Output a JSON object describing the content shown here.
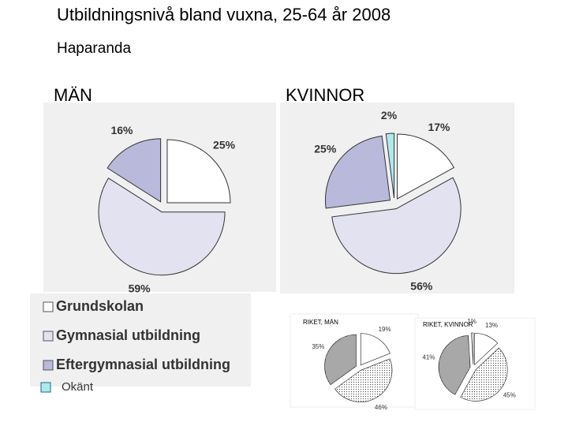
{
  "title": "Utbildningsnivå bland vuxna, 25-64 år 2008",
  "subtitle": "Haparanda",
  "legend": [
    {
      "name": "Grundskolan",
      "color": "#ffffff"
    },
    {
      "name": "Gymnasial utbildning",
      "color": "#e2e2f0"
    },
    {
      "name": "Eftergymnasial utbildning",
      "color": "#b9b9dc"
    },
    {
      "name": "Okänt",
      "color": "#aee9ee"
    }
  ],
  "chart_data": [
    {
      "type": "pie",
      "title": "MÄN",
      "values": [
        25,
        59,
        16
      ],
      "value_labels": [
        "25%",
        "59%",
        "16%"
      ],
      "colors": [
        "#ffffff",
        "#e2e2f0",
        "#b9b9dc"
      ]
    },
    {
      "type": "pie",
      "title": "KVINNOR",
      "values": [
        17,
        56,
        25,
        2
      ],
      "value_labels": [
        "17%",
        "56%",
        "25%",
        "2%"
      ],
      "colors": [
        "#ffffff",
        "#e2e2f0",
        "#b9b9dc",
        "#aee9ee"
      ]
    },
    {
      "type": "pie",
      "title": "RIKET, MÄN",
      "values": [
        19,
        46,
        35
      ],
      "value_labels": [
        "19%",
        "46%",
        "35%"
      ],
      "colors": [
        "#ffffff",
        "url(#dots-light)",
        "url(#dots-dense)"
      ]
    },
    {
      "type": "pie",
      "title": "RIKET, KVINNOR",
      "values": [
        13,
        45,
        41,
        1
      ],
      "value_labels": [
        "13%",
        "45%",
        "41%",
        "1%"
      ],
      "colors": [
        "#ffffff",
        "url(#dots-light)",
        "url(#dots-dense)",
        "#ffffff"
      ]
    }
  ]
}
